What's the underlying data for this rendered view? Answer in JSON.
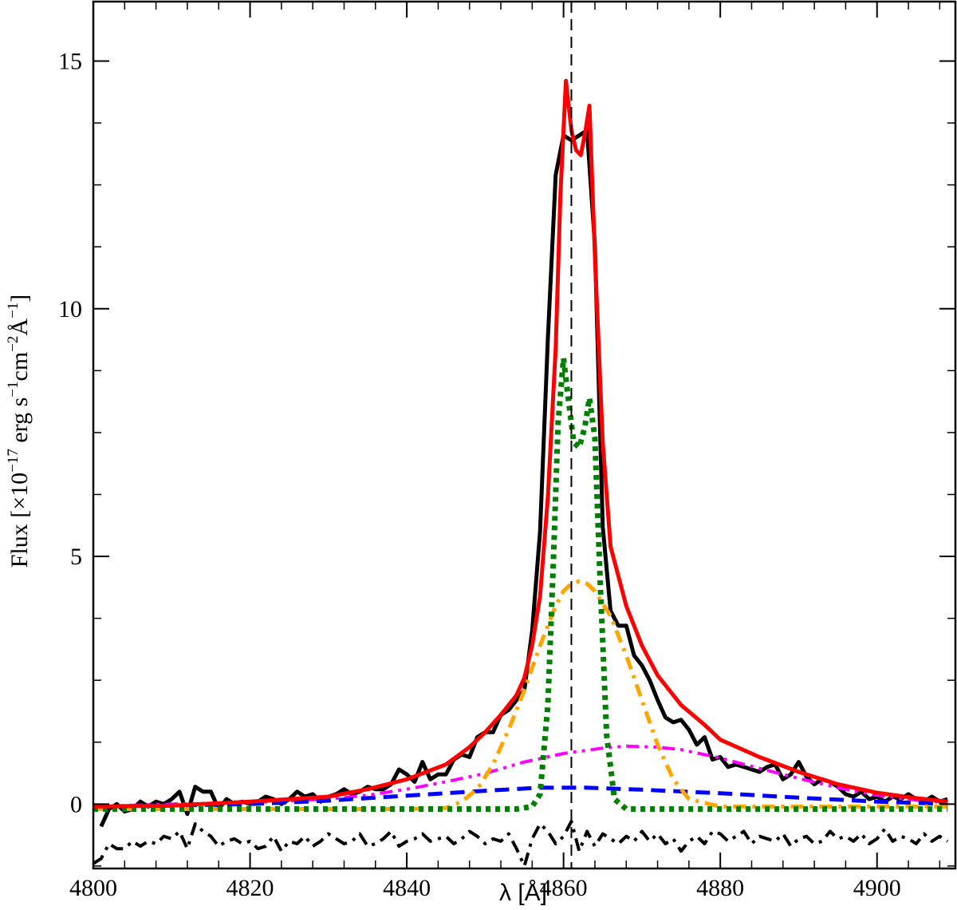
{
  "chart_data": {
    "type": "line",
    "xlabel": "λ [Å]",
    "ylabel": "Flux [×10⁻¹⁷ erg s⁻¹cm⁻²Å⁻¹]",
    "ylabel_parts": {
      "prefix": "Flux [×10",
      "exp1": "−17",
      "mid1": " erg s",
      "exp2": "−1",
      "mid2": "cm",
      "exp3": "−2",
      "mid3": "Å",
      "exp4": "−1",
      "suffix": "]"
    },
    "xlim": [
      4800,
      4910
    ],
    "ylim": [
      -1.3,
      16.2
    ],
    "x_ticks": [
      4800,
      4820,
      4840,
      4860,
      4880,
      4900
    ],
    "x_tick_labels": [
      "4800",
      "4820",
      "4840",
      "4860",
      "4880",
      "4900"
    ],
    "y_ticks": [
      0,
      5,
      10,
      15
    ],
    "y_tick_labels": [
      "0",
      "5",
      "10",
      "15"
    ],
    "x_minor_step": 4,
    "y_minor_step": 1.25,
    "grid": false,
    "reference_line_x": 4861,
    "series": [
      {
        "style": "solid",
        "color": "#000000",
        "width": 5,
        "x": [
          4801,
          4802,
          4803,
          4804,
          4805,
          4806,
          4807,
          4808,
          4809,
          4810,
          4811,
          4812,
          4813,
          4814,
          4815,
          4816,
          4817,
          4818,
          4819,
          4820,
          4821,
          4822,
          4823,
          4824,
          4825,
          4826,
          4827,
          4828,
          4829,
          4830,
          4831,
          4832,
          4833,
          4834,
          4835,
          4836,
          4837,
          4838,
          4839,
          4840,
          4841,
          4842,
          4843,
          4844,
          4845,
          4846,
          4847,
          4848,
          4849,
          4850,
          4851,
          4852,
          4853,
          4854,
          4855,
          4856,
          4857,
          4858,
          4859,
          4860,
          4861,
          4862,
          4863,
          4864,
          4865,
          4866,
          4867,
          4868,
          4869,
          4870,
          4871,
          4872,
          4873,
          4874,
          4875,
          4876,
          4877,
          4878,
          4879,
          4880,
          4881,
          4882,
          4883,
          4884,
          4885,
          4886,
          4887,
          4888,
          4889,
          4890,
          4891,
          4892,
          4893,
          4894,
          4895,
          4896,
          4897,
          4898,
          4899,
          4900,
          4901,
          4902,
          4903,
          4904,
          4905,
          4906,
          4907,
          4908,
          4909
        ],
        "y": [
          -0.45,
          -0.1,
          0.0,
          -0.15,
          -0.1,
          0.05,
          -0.05,
          0.05,
          0.0,
          0.1,
          0.25,
          -0.2,
          0.35,
          0.25,
          0.25,
          -0.1,
          0.1,
          0.0,
          0.05,
          0.0,
          0.05,
          0.15,
          0.1,
          0.0,
          0.1,
          0.25,
          0.15,
          0.2,
          0.05,
          0.15,
          0.2,
          0.3,
          0.2,
          0.25,
          0.35,
          0.3,
          0.3,
          0.4,
          0.7,
          0.6,
          0.45,
          0.85,
          0.5,
          0.6,
          0.6,
          0.9,
          1.0,
          0.95,
          1.35,
          1.45,
          1.45,
          1.8,
          1.9,
          2.1,
          2.3,
          3.5,
          5.5,
          9.4,
          12.7,
          13.5,
          13.4,
          13.5,
          13.6,
          11.3,
          5.6,
          3.9,
          3.6,
          3.6,
          3.0,
          2.8,
          2.5,
          2.1,
          1.75,
          1.65,
          1.7,
          1.5,
          1.2,
          1.35,
          0.9,
          0.95,
          0.75,
          0.8,
          0.75,
          0.7,
          0.65,
          0.75,
          0.8,
          0.5,
          0.6,
          0.85,
          0.55,
          0.4,
          0.5,
          0.45,
          0.35,
          0.2,
          0.15,
          0.25,
          0.1,
          0.15,
          0.05,
          0.15,
          0.1,
          0.2,
          0.1,
          0.05,
          0.15,
          0.05,
          0.1
        ]
      },
      {
        "style": "dashdotdot",
        "color": "#ff00ff",
        "width": 4,
        "x": [
          4800,
          4810,
          4820,
          4830,
          4835,
          4840,
          4845,
          4850,
          4855,
          4860,
          4865,
          4868,
          4872,
          4875,
          4880,
          4885,
          4890,
          4895,
          4900,
          4905,
          4909
        ],
        "y": [
          -0.05,
          0.0,
          0.03,
          0.1,
          0.18,
          0.3,
          0.45,
          0.62,
          0.85,
          1.02,
          1.13,
          1.17,
          1.15,
          1.1,
          0.93,
          0.72,
          0.52,
          0.33,
          0.18,
          0.08,
          0.03
        ]
      },
      {
        "style": "dashed",
        "color": "#0000ff",
        "width": 5,
        "x": [
          4800,
          4810,
          4820,
          4830,
          4840,
          4850,
          4857,
          4863,
          4870,
          4880,
          4890,
          4900,
          4909
        ],
        "y": [
          -0.05,
          -0.03,
          0.0,
          0.07,
          0.17,
          0.27,
          0.33,
          0.33,
          0.29,
          0.22,
          0.13,
          0.05,
          0.0
        ]
      },
      {
        "style": "dashdot",
        "color": "#ffa500",
        "width": 5,
        "x": [
          4800,
          4840,
          4845,
          4847,
          4849,
          4851,
          4853,
          4855,
          4857,
          4859,
          4860,
          4861,
          4862,
          4863,
          4864,
          4866,
          4868,
          4870,
          4872,
          4874,
          4876,
          4880,
          4909
        ],
        "y": [
          -0.1,
          -0.1,
          -0.08,
          0.05,
          0.3,
          0.8,
          1.5,
          2.3,
          3.2,
          4.0,
          4.3,
          4.45,
          4.5,
          4.45,
          4.3,
          3.8,
          3.0,
          2.1,
          1.2,
          0.5,
          0.1,
          -0.05,
          -0.05
        ]
      },
      {
        "style": "dotted",
        "color": "#008000",
        "width": 7,
        "x": [
          4800,
          4854,
          4856,
          4857,
          4858,
          4858.7,
          4859.3,
          4860,
          4860.6,
          4861.3,
          4862,
          4862.7,
          4863.3,
          4864,
          4864.7,
          4865.5,
          4866.5,
          4868,
          4909
        ],
        "y": [
          -0.1,
          -0.1,
          -0.05,
          0.2,
          2.0,
          4.9,
          7.7,
          9.0,
          8.2,
          7.3,
          7.2,
          7.6,
          8.2,
          7.4,
          4.4,
          1.4,
          0.1,
          -0.1,
          -0.1
        ]
      },
      {
        "style": "solid",
        "color": "#ff0000",
        "width": 5,
        "x": [
          4800,
          4810,
          4820,
          4830,
          4835,
          4840,
          4845,
          4848,
          4850,
          4852,
          4854,
          4855,
          4856,
          4857,
          4858,
          4859,
          4859.6,
          4860.3,
          4861,
          4861.6,
          4862.2,
          4862.8,
          4863.3,
          4864,
          4865,
          4866,
          4868,
          4870,
          4872,
          4875,
          4878,
          4880,
          4885,
          4890,
          4895,
          4900,
          4905,
          4909
        ],
        "y": [
          -0.05,
          -0.03,
          0.05,
          0.15,
          0.3,
          0.5,
          0.8,
          1.15,
          1.45,
          1.8,
          2.2,
          2.55,
          3.2,
          4.2,
          6.2,
          9.2,
          12.3,
          14.6,
          13.6,
          13.2,
          13.1,
          13.6,
          14.1,
          11.1,
          7.3,
          5.2,
          4.0,
          3.2,
          2.6,
          2.0,
          1.6,
          1.3,
          0.95,
          0.65,
          0.4,
          0.23,
          0.12,
          0.05
        ]
      },
      {
        "style": "dashdot",
        "color": "#000000",
        "width": 4,
        "x": [
          4800,
          4801,
          4802,
          4803,
          4804,
          4805,
          4806,
          4807,
          4808,
          4809,
          4810,
          4811,
          4812,
          4813,
          4814,
          4815,
          4816,
          4817,
          4818,
          4819,
          4820,
          4821,
          4822,
          4823,
          4824,
          4825,
          4826,
          4827,
          4828,
          4829,
          4830,
          4831,
          4832,
          4833,
          4834,
          4835,
          4836,
          4837,
          4838,
          4839,
          4840,
          4841,
          4842,
          4843,
          4844,
          4845,
          4846,
          4847,
          4848,
          4849,
          4850,
          4851,
          4852,
          4853,
          4854,
          4855,
          4856,
          4857,
          4858,
          4859,
          4860,
          4861,
          4862,
          4863,
          4864,
          4865,
          4866,
          4867,
          4868,
          4869,
          4870,
          4871,
          4872,
          4873,
          4874,
          4875,
          4876,
          4877,
          4878,
          4879,
          4880,
          4881,
          4882,
          4883,
          4884,
          4885,
          4886,
          4887,
          4888,
          4889,
          4890,
          4891,
          4892,
          4893,
          4894,
          4895,
          4896,
          4897,
          4898,
          4899,
          4900,
          4901,
          4902,
          4903,
          4904,
          4905,
          4906,
          4907,
          4908,
          4909
        ],
        "y": [
          -1.2,
          -1.1,
          -0.8,
          -0.9,
          -0.9,
          -0.75,
          -0.85,
          -0.75,
          -0.8,
          -0.65,
          -0.7,
          -0.55,
          -0.9,
          -0.4,
          -0.55,
          -0.65,
          -0.85,
          -0.75,
          -0.7,
          -0.8,
          -0.75,
          -0.9,
          -0.85,
          -0.65,
          -0.95,
          -0.75,
          -0.8,
          -0.65,
          -0.85,
          -0.75,
          -0.6,
          -0.7,
          -0.8,
          -0.75,
          -0.6,
          -0.85,
          -0.8,
          -0.7,
          -0.55,
          -0.85,
          -0.75,
          -0.7,
          -0.6,
          -0.75,
          -0.7,
          -0.65,
          -0.8,
          -0.7,
          -0.55,
          -0.65,
          -0.8,
          -0.7,
          -0.75,
          -0.6,
          -0.9,
          -1.25,
          -0.7,
          -0.4,
          -0.55,
          -0.8,
          -0.65,
          -0.35,
          -0.95,
          -0.55,
          -0.85,
          -0.6,
          -0.7,
          -0.8,
          -0.65,
          -0.75,
          -0.55,
          -0.75,
          -0.6,
          -0.8,
          -0.7,
          -0.95,
          -0.75,
          -0.65,
          -0.8,
          -0.55,
          -0.6,
          -0.75,
          -0.65,
          -0.55,
          -0.8,
          -0.65,
          -0.7,
          -0.75,
          -0.6,
          -0.85,
          -0.7,
          -0.65,
          -0.8,
          -0.75,
          -0.55,
          -0.7,
          -0.65,
          -0.75,
          -0.6,
          -0.8,
          -0.7,
          -0.5,
          -0.75,
          -0.65,
          -0.7,
          -0.8,
          -0.6,
          -0.75,
          -0.65,
          -0.75
        ]
      }
    ]
  }
}
